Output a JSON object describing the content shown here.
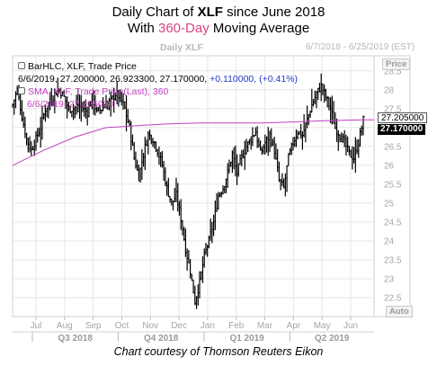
{
  "title": {
    "line1_prefix": "Daily Chart of ",
    "symbol": "XLF",
    "line1_suffix": " since June 2018",
    "line2_prefix": "With ",
    "line2_accent": "360-Day",
    "line2_suffix": " Moving Average"
  },
  "header": {
    "symbol_label": "Daily XLF",
    "date_range": "6/7/2018 - 6/25/2019 (EST)",
    "price_button": "Price",
    "auto_button": "Auto"
  },
  "legend": {
    "bar_name": "BarHLC, XLF, Trade Price",
    "bar_values": "6/6/2019, 27.200000, 26.923300, 27.170000, ",
    "bar_change": "+0.110000, (+0.41%)",
    "sma_name": "SMA, XLF, Trade Price(Last),  360",
    "sma_values": "6/6/2019, 27.205000"
  },
  "price_tags": {
    "sma": "27.205000",
    "last": "27.170000"
  },
  "credit": "Chart courtesy of Thomson Reuters Eikon",
  "colors": {
    "bars": "#000000",
    "sma": "#c33ec3",
    "change": "#2039c8",
    "accent": "#d6447f",
    "grid": "#e6e6e6"
  },
  "chart_data": {
    "type": "bar",
    "subtype": "daily HLC price bars with 360-day simple moving average",
    "symbol": "XLF",
    "y_ticks": [
      22.5,
      23,
      23.5,
      24,
      24.5,
      25,
      25.5,
      26,
      26.5,
      27,
      27.5,
      28,
      28.5
    ],
    "ylim": [
      22,
      28.9
    ],
    "month_labels": [
      "Jul",
      "Aug",
      "Sep",
      "Oct",
      "Nov",
      "Dec",
      "Jan",
      "Feb",
      "Mar",
      "Apr",
      "May",
      "Jun"
    ],
    "quarter_labels": [
      "Q3 2018",
      "Q4 2018",
      "Q1 2019",
      "Q2 2019"
    ],
    "price_path": [
      [
        0,
        27.6
      ],
      [
        3,
        28.0
      ],
      [
        6,
        27.3
      ],
      [
        9,
        26.7
      ],
      [
        12,
        26.4
      ],
      [
        15,
        26.7
      ],
      [
        18,
        27.0
      ],
      [
        21,
        27.5
      ],
      [
        24,
        27.7
      ],
      [
        27,
        27.9
      ],
      [
        30,
        28.0
      ],
      [
        33,
        27.8
      ],
      [
        36,
        27.5
      ],
      [
        39,
        27.5
      ],
      [
        42,
        27.6
      ],
      [
        45,
        27.5
      ],
      [
        48,
        27.4
      ],
      [
        51,
        27.8
      ],
      [
        54,
        27.4
      ],
      [
        57,
        27.5
      ],
      [
        60,
        27.6
      ],
      [
        63,
        27.7
      ],
      [
        66,
        27.9
      ],
      [
        69,
        27.8
      ],
      [
        72,
        27.5
      ],
      [
        75,
        27.0
      ],
      [
        78,
        26.2
      ],
      [
        81,
        25.7
      ],
      [
        84,
        26.3
      ],
      [
        87,
        26.8
      ],
      [
        90,
        26.7
      ],
      [
        93,
        26.4
      ],
      [
        96,
        26.0
      ],
      [
        99,
        25.4
      ],
      [
        102,
        25.0
      ],
      [
        105,
        25.2
      ],
      [
        108,
        24.6
      ],
      [
        111,
        23.8
      ],
      [
        114,
        23.2
      ],
      [
        117,
        22.4
      ],
      [
        120,
        22.9
      ],
      [
        123,
        23.6
      ],
      [
        126,
        24.0
      ],
      [
        129,
        24.5
      ],
      [
        132,
        25.2
      ],
      [
        135,
        25.4
      ],
      [
        138,
        25.8
      ],
      [
        141,
        26.3
      ],
      [
        144,
        25.8
      ],
      [
        147,
        26.2
      ],
      [
        150,
        26.5
      ],
      [
        153,
        26.7
      ],
      [
        156,
        26.9
      ],
      [
        159,
        26.3
      ],
      [
        162,
        26.6
      ],
      [
        165,
        26.8
      ],
      [
        168,
        26.4
      ],
      [
        171,
        25.6
      ],
      [
        174,
        25.4
      ],
      [
        177,
        26.2
      ],
      [
        180,
        26.6
      ],
      [
        183,
        26.9
      ],
      [
        186,
        26.8
      ],
      [
        189,
        27.2
      ],
      [
        192,
        27.6
      ],
      [
        195,
        27.9
      ],
      [
        198,
        28.1
      ],
      [
        201,
        27.8
      ],
      [
        204,
        27.5
      ],
      [
        207,
        27.0
      ],
      [
        210,
        26.8
      ],
      [
        213,
        26.6
      ],
      [
        216,
        26.3
      ],
      [
        219,
        26.2
      ],
      [
        222,
        26.6
      ],
      [
        225,
        27.2
      ]
    ],
    "sma_360": [
      [
        0,
        26.0
      ],
      [
        20,
        26.4
      ],
      [
        40,
        26.75
      ],
      [
        60,
        27.0
      ],
      [
        80,
        27.05
      ],
      [
        100,
        27.1
      ],
      [
        120,
        27.12
      ],
      [
        140,
        27.12
      ],
      [
        160,
        27.12
      ],
      [
        180,
        27.15
      ],
      [
        200,
        27.18
      ],
      [
        225,
        27.205
      ]
    ],
    "last_close": 27.17,
    "sma_last": 27.205
  }
}
